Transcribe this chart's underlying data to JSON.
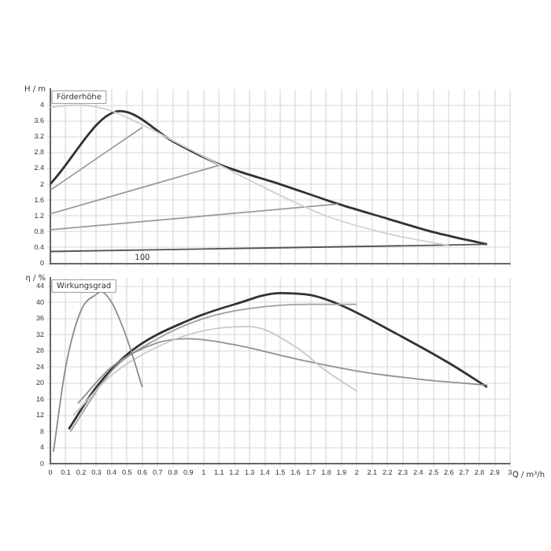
{
  "chart_data": [
    {
      "type": "line",
      "title": "Förderhöhe",
      "ylabel": "H / m",
      "xlim": [
        0,
        3.0
      ],
      "xticks": [
        0,
        0.1,
        0.2,
        0.3,
        0.4,
        0.5,
        0.6,
        0.7,
        0.8,
        0.9,
        1,
        1.1,
        1.2,
        1.3,
        1.4,
        1.5,
        1.6,
        1.7,
        1.8,
        1.9,
        2,
        2.1,
        2.2,
        2.3,
        2.4,
        2.5,
        2.6,
        2.7,
        2.8,
        2.9,
        3
      ],
      "ylim": [
        0,
        4.4
      ],
      "yticks": [
        0,
        0.4,
        0.8,
        1.2,
        1.6,
        2,
        2.4,
        2.8,
        3.2,
        3.6,
        4
      ],
      "grid": true,
      "legend": false,
      "marker": "none",
      "tick_labels": "y",
      "annotations": [
        {
          "text": "100",
          "x": 0.6,
          "y": 0.15
        }
      ],
      "series": [
        {
          "color": "#d0d0d0",
          "x": [
            0,
            0.2,
            0.4,
            0.6,
            0.9,
            1.3,
            1.8,
            2.2,
            2.6
          ],
          "values": [
            3.95,
            4.0,
            3.85,
            3.5,
            2.9,
            2.1,
            1.2,
            0.75,
            0.45
          ]
        },
        {
          "color": "#9a9a9a",
          "x": [
            0,
            0.6
          ],
          "values": [
            1.85,
            3.44
          ]
        },
        {
          "color": "#9a9a9a",
          "x": [
            0,
            1.11
          ],
          "values": [
            1.25,
            2.49
          ]
        },
        {
          "color": "#9a9a9a",
          "x": [
            0,
            1.88
          ],
          "values": [
            0.85,
            1.5
          ]
        },
        {
          "color": "#555555",
          "x": [
            0,
            2.85
          ],
          "values": [
            0.3,
            0.48
          ]
        },
        {
          "color": "#333333",
          "x": [
            0,
            0.455,
            0.81,
            1.11,
            1.5,
            1.88,
            2.2,
            2.5,
            2.85
          ],
          "values": [
            2.01,
            3.85,
            3.06,
            2.49,
            2.0,
            1.5,
            1.13,
            0.79,
            0.48
          ]
        }
      ]
    },
    {
      "type": "line",
      "title": "Wirkungsgrad",
      "ylabel": "η / %",
      "xlabel": "Q / m³/h",
      "xlim": [
        0,
        3.0
      ],
      "xticks": [
        0,
        0.1,
        0.2,
        0.3,
        0.4,
        0.5,
        0.6,
        0.7,
        0.8,
        0.9,
        1,
        1.1,
        1.2,
        1.3,
        1.4,
        1.5,
        1.6,
        1.7,
        1.8,
        1.9,
        2,
        2.1,
        2.2,
        2.3,
        2.4,
        2.5,
        2.6,
        2.7,
        2.8,
        2.9,
        3
      ],
      "ylim": [
        0,
        46
      ],
      "yticks": [
        0,
        4,
        8,
        12,
        16,
        20,
        24,
        28,
        32,
        36,
        40,
        44
      ],
      "grid": true,
      "legend": false,
      "marker": "none",
      "series": [
        {
          "color": "#8a8a8a",
          "x": [
            0.02,
            0.1,
            0.2,
            0.3,
            0.33,
            0.4,
            0.5,
            0.6
          ],
          "values": [
            3,
            24,
            38,
            42,
            42.6,
            40,
            31,
            19
          ]
        },
        {
          "color": "#c8c8c8",
          "x": [
            0.15,
            0.4,
            0.7,
            1.0,
            1.3,
            1.6,
            1.8,
            2.0
          ],
          "values": [
            12,
            22,
            29,
            33,
            34,
            29,
            23,
            18
          ]
        },
        {
          "color": "#909090",
          "x": [
            0.18,
            0.4,
            0.7,
            0.9,
            1.2,
            1.6,
            2.0,
            2.4,
            2.85
          ],
          "values": [
            15,
            24,
            30,
            31,
            29.5,
            26,
            23,
            21,
            19.5
          ]
        },
        {
          "color": "#a0a0a0",
          "x": [
            0.13,
            0.4,
            0.7,
            1.0,
            1.3,
            1.7,
            2.0
          ],
          "values": [
            8,
            23,
            31,
            36,
            38.5,
            39.5,
            39.5
          ]
        },
        {
          "color": "#333333",
          "x": [
            0.12,
            0.3,
            0.53,
            0.91,
            1.2,
            1.5,
            1.7,
            1.89,
            2.26,
            2.6,
            2.85
          ],
          "values": [
            8.6,
            19,
            28,
            35.7,
            39.5,
            42.3,
            41.8,
            39.4,
            32.2,
            25,
            19
          ]
        }
      ]
    }
  ]
}
